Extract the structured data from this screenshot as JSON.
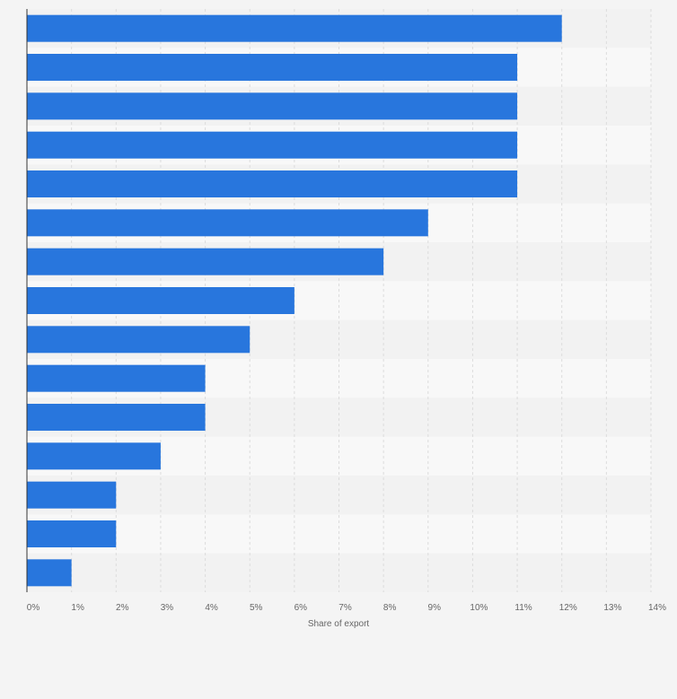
{
  "colors": {
    "background": "#f4f4f4",
    "bar": "#2876dd",
    "band_light": "#f8f8f8",
    "band_dark": "#f2f2f2",
    "grid": "#dcdcdc",
    "axis": "#333333",
    "text": "#666666"
  },
  "chart_data": {
    "type": "bar",
    "orientation": "horizontal",
    "categories": [
      "",
      "",
      "",
      "",
      "",
      "",
      "",
      "",
      "",
      "",
      "",
      "",
      "",
      "",
      ""
    ],
    "values": [
      12,
      11,
      11,
      11,
      11,
      9,
      8,
      6,
      5,
      4,
      4,
      3,
      2,
      2,
      1
    ],
    "xlabel": "Share of export",
    "ylabel": "",
    "xlim": [
      0,
      14
    ],
    "x_ticks": [
      "0%",
      "1%",
      "2%",
      "3%",
      "4%",
      "5%",
      "6%",
      "7%",
      "8%",
      "9%",
      "10%",
      "11%",
      "12%",
      "13%",
      "14%"
    ],
    "grid": true,
    "legend": "none"
  }
}
